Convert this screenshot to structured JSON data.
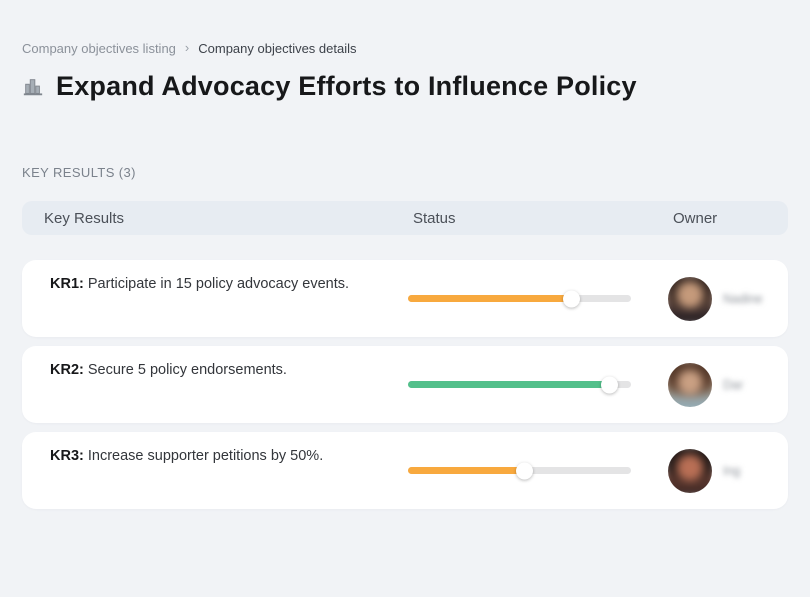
{
  "breadcrumb": {
    "separator": "›",
    "items": [
      {
        "label": "Company objectives listing"
      },
      {
        "label": "Company objectives details"
      }
    ]
  },
  "header": {
    "title": "Expand Advocacy Efforts to Influence Policy",
    "icon": "city-buildings-icon"
  },
  "section": {
    "label": "KEY RESULTS (3)"
  },
  "table": {
    "columns": {
      "key_results": "Key Results",
      "status": "Status",
      "owner": "Owner"
    },
    "rows": [
      {
        "kr_label": "KR1:",
        "description": "Participate in 15 policy advocacy events.",
        "progress_percent": 73,
        "progress_color": "#F8A93E",
        "owner": "Nadine"
      },
      {
        "kr_label": "KR2:",
        "description": "Secure 5 policy endorsements.",
        "progress_percent": 90,
        "progress_color": "#53C08B",
        "owner": "Dar"
      },
      {
        "kr_label": "KR3:",
        "description": "Increase supporter petitions by 50%.",
        "progress_percent": 52,
        "progress_color": "#F8A93E",
        "owner": "Ing"
      }
    ]
  },
  "colors": {
    "page_background": "#f1f3f6",
    "table_header_background": "#e7ecf2",
    "progress_track": "#e4e4e5",
    "status_orange": "#F8A93E",
    "status_green": "#53C08B"
  }
}
